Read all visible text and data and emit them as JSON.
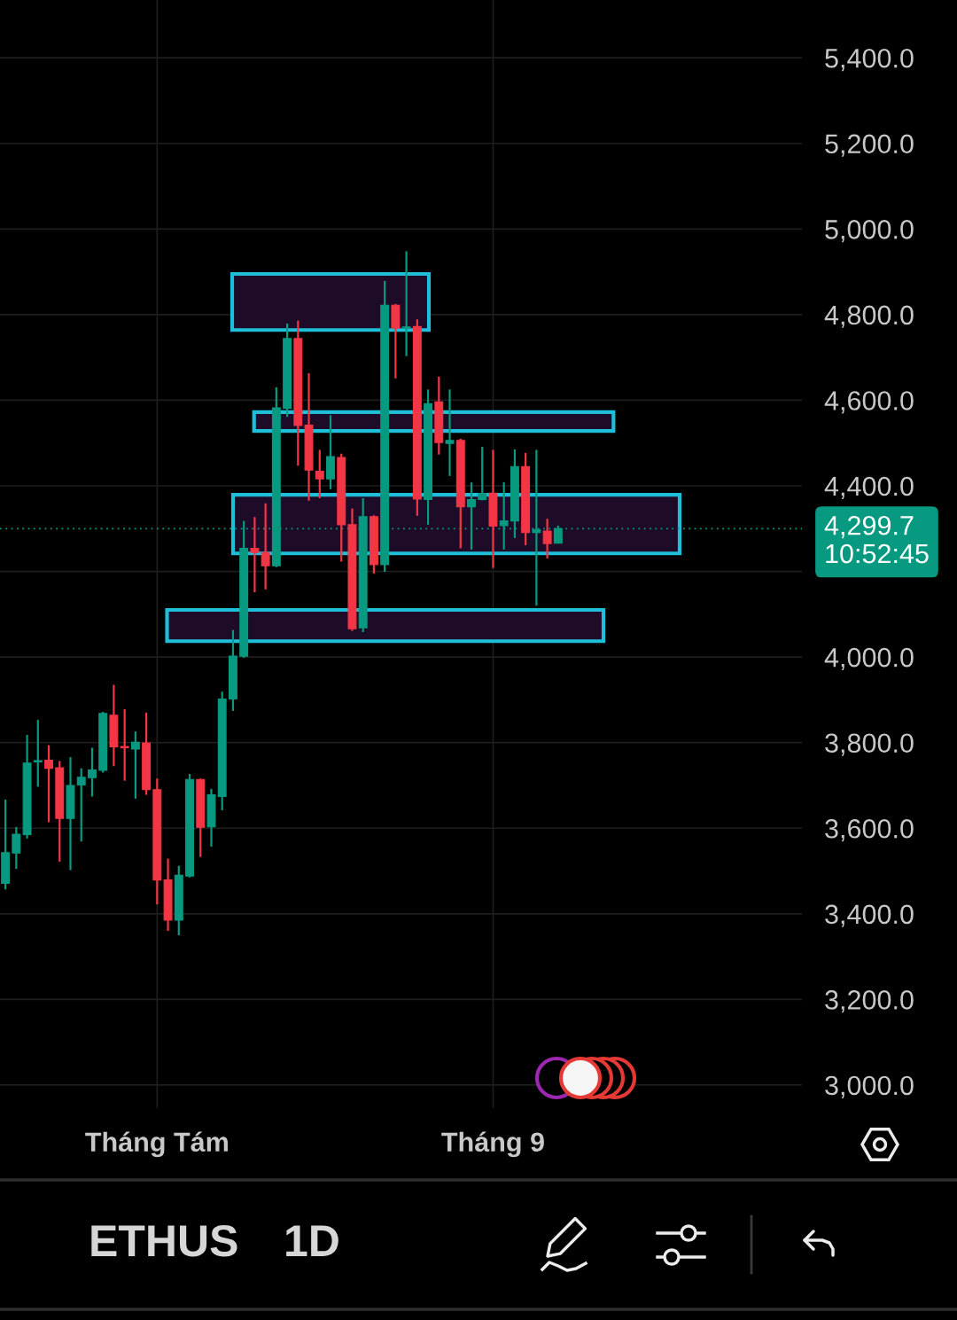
{
  "chart_data": {
    "type": "candlestick",
    "categories": [
      null,
      null,
      null,
      null,
      null,
      null,
      null,
      null,
      null,
      null,
      null,
      null,
      null,
      null,
      "Tháng Tám",
      null,
      null,
      null,
      null,
      null,
      null,
      null,
      null,
      null,
      null,
      null,
      null,
      null,
      null,
      null,
      null,
      null,
      null,
      null,
      null,
      null,
      null,
      null,
      null,
      null,
      null,
      null,
      null,
      null,
      null,
      "Tháng 9",
      null,
      null,
      null,
      null,
      null,
      null,
      null,
      null,
      null,
      null,
      null,
      null,
      null,
      null,
      null,
      null,
      null,
      null,
      null,
      null,
      null,
      null,
      null,
      null,
      null,
      null,
      null,
      null
    ],
    "ohlc": [
      [
        3471,
        3667,
        3457,
        3543
      ],
      [
        3542,
        3603,
        3505,
        3586
      ],
      [
        3585,
        3818,
        3576,
        3752
      ],
      [
        3755,
        3853,
        3697,
        3758
      ],
      [
        3759,
        3794,
        3614,
        3740
      ],
      [
        3741,
        3757,
        3522,
        3623
      ],
      [
        3623,
        3766,
        3502,
        3700
      ],
      [
        3701,
        3740,
        3569,
        3719
      ],
      [
        3718,
        3788,
        3674,
        3736
      ],
      [
        3735,
        3872,
        3730,
        3868
      ],
      [
        3864,
        3935,
        3745,
        3790
      ],
      [
        3791,
        3878,
        3711,
        3788
      ],
      [
        3785,
        3826,
        3669,
        3801
      ],
      [
        3799,
        3870,
        3678,
        3690
      ],
      [
        3690,
        3716,
        3422,
        3479
      ],
      [
        3479,
        3529,
        3360,
        3385
      ],
      [
        3385,
        3512,
        3350,
        3490
      ],
      [
        3488,
        3727,
        3485,
        3714
      ],
      [
        3714,
        3716,
        3533,
        3602
      ],
      [
        3603,
        3692,
        3557,
        3678
      ],
      [
        3674,
        3919,
        3642,
        3902
      ],
      [
        3902,
        4063,
        3874,
        4002
      ],
      [
        4002,
        4318,
        3998,
        4254
      ],
      [
        4254,
        4327,
        4151,
        4244
      ],
      [
        4244,
        4359,
        4158,
        4213
      ],
      [
        4213,
        4630,
        4210,
        4582
      ],
      [
        4581,
        4779,
        4561,
        4744
      ],
      [
        4744,
        4786,
        4447,
        4541
      ],
      [
        4542,
        4663,
        4365,
        4437
      ],
      [
        4434,
        4484,
        4371,
        4416
      ],
      [
        4416,
        4565,
        4392,
        4468
      ],
      [
        4466,
        4475,
        4223,
        4309
      ],
      [
        4309,
        4347,
        4061,
        4066
      ],
      [
        4068,
        4371,
        4058,
        4328
      ],
      [
        4328,
        4331,
        4195,
        4216
      ],
      [
        4216,
        4879,
        4199,
        4822
      ],
      [
        4822,
        4825,
        4651,
        4768
      ],
      [
        4768,
        4948,
        4703,
        4771
      ],
      [
        4772,
        4789,
        4330,
        4369
      ],
      [
        4368,
        4625,
        4309,
        4592
      ],
      [
        4596,
        4655,
        4473,
        4501
      ],
      [
        4499,
        4625,
        4423,
        4506
      ],
      [
        4506,
        4510,
        4254,
        4351
      ],
      [
        4351,
        4408,
        4251,
        4368
      ],
      [
        4368,
        4491,
        4366,
        4382
      ],
      [
        4383,
        4484,
        4208,
        4306
      ],
      [
        4307,
        4408,
        4251,
        4318
      ],
      [
        4318,
        4485,
        4278,
        4445
      ],
      [
        4445,
        4477,
        4261,
        4291
      ],
      [
        4291,
        4484,
        4120,
        4298
      ],
      [
        4294,
        4323,
        4230,
        4265
      ],
      [
        4266,
        4307,
        4265,
        4299.7
      ],
      null,
      null,
      null,
      null,
      null,
      null,
      null,
      null,
      null,
      null,
      null,
      null,
      null,
      null,
      null,
      null,
      null,
      null,
      null,
      null,
      null,
      null
    ],
    "colors": [
      "#089981",
      "#089981",
      "#089981",
      "#089981",
      "#f23645",
      "#f23645",
      "#089981",
      "#089981",
      "#089981",
      "#089981",
      "#f23645",
      "#f23645",
      "#089981",
      "#f23645",
      "#f23645",
      "#f23645",
      "#089981",
      "#089981",
      "#f23645",
      "#089981",
      "#089981",
      "#089981",
      "#089981",
      "#f23645",
      "#f23645",
      "#089981",
      "#089981",
      "#f23645",
      "#f23645",
      "#f23645",
      "#089981",
      "#f23645",
      "#f23645",
      "#089981",
      "#f23645",
      "#089981",
      "#f23645",
      "#089981",
      "#f23645",
      "#089981",
      "#f23645",
      "#089981",
      "#f23645",
      "#089981",
      "#089981",
      "#f23645",
      "#089981",
      "#089981",
      "#f23645",
      "#089981",
      "#f23645",
      "#089981",
      null,
      null,
      null,
      null,
      null,
      null,
      null,
      null,
      null,
      null,
      null,
      null,
      null,
      null,
      null,
      null,
      null,
      null,
      null,
      null,
      null,
      null
    ],
    "ylim": [
      2946,
      5535
    ],
    "yticks": [
      {
        "value": 3000,
        "label": "3,000.0"
      },
      {
        "value": 3200,
        "label": "3,200.0"
      },
      {
        "value": 3400,
        "label": "3,400.0"
      },
      {
        "value": 3600,
        "label": "3,600.0"
      },
      {
        "value": 3800,
        "label": "3,800.0"
      },
      {
        "value": 4000,
        "label": "4,000.0"
      },
      {
        "value": 4200,
        "label": null
      },
      {
        "value": 4400,
        "label": "4,400.0"
      },
      {
        "value": 4600,
        "label": "4,600.0"
      },
      {
        "value": 4800,
        "label": "4,800.0"
      },
      {
        "value": 5000,
        "label": "5,000.0"
      },
      {
        "value": 5200,
        "label": "5,200.0"
      },
      {
        "value": 5400,
        "label": "5,400.0"
      }
    ],
    "grid": true,
    "ref_lines": [
      {
        "axis": "y",
        "value": 4299.7,
        "label": "4,299.7\n10:52:45",
        "color": "#089981",
        "line_style": "dotted"
      }
    ],
    "bands": [
      {
        "axis": "y",
        "from": 4764,
        "to": 4895,
        "color": "#1fbfd9"
      },
      {
        "axis": "y",
        "from": 4528,
        "to": 4572,
        "color": "#1fbfd9"
      },
      {
        "axis": "y",
        "from": 4242,
        "to": 4379,
        "color": "#1fbfd9"
      },
      {
        "axis": "y",
        "from": 4037,
        "to": 4110,
        "color": "#1fbfd9"
      }
    ],
    "annotations": [
      "ETHUS",
      "1D"
    ]
  }
}
